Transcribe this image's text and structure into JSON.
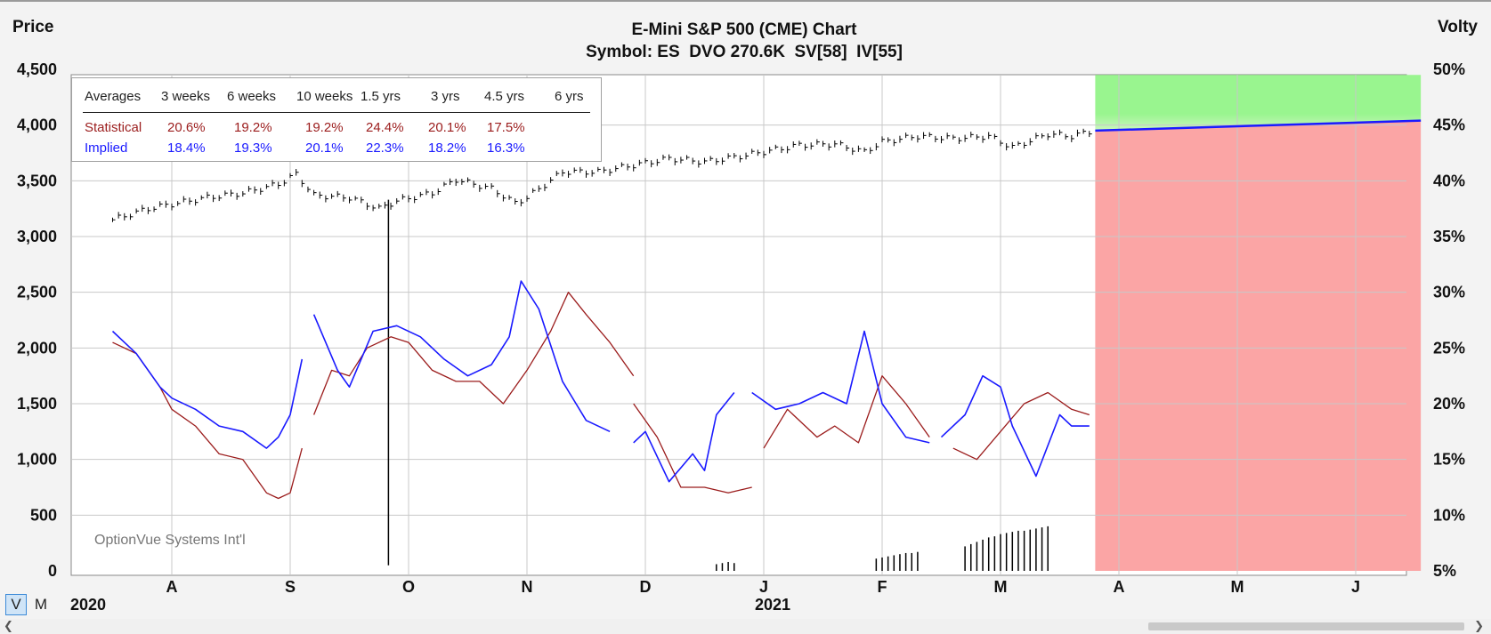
{
  "header": {
    "price_label": "Price",
    "volty_label": "Volty",
    "title": "E-Mini S&P 500 (CME) Chart",
    "subtitle": "Symbol: ES  DVO 270.6K  SV[58]  IV[55]"
  },
  "averages_table": {
    "columns": [
      "Averages",
      "3 weeks",
      "6 weeks",
      "10 weeks",
      "1.5 yrs",
      "3 yrs",
      "4.5 yrs",
      "6 yrs"
    ],
    "statistical": {
      "label": "Statistical",
      "values": [
        "20.6%",
        "19.2%",
        "19.2%",
        "24.4%",
        "20.1%",
        "17.5%",
        ""
      ]
    },
    "implied": {
      "label": "Implied",
      "values": [
        "18.4%",
        "19.3%",
        "20.1%",
        "22.3%",
        "18.2%",
        "16.3%",
        ""
      ]
    }
  },
  "watermark": "OptionVue Systems Int'l",
  "toggles": {
    "v": "V",
    "m": "M"
  },
  "colors": {
    "price_bars": "#000000",
    "statistical": "#9b1c1c",
    "implied": "#1a1aff",
    "projection_up": "#99f58f",
    "projection_down": "#fba5a5",
    "projection_line": "#1a1aff"
  },
  "chart_data": {
    "type": "line",
    "title": "E-Mini S&P 500 (CME) Chart",
    "subtitle": "Symbol: ES  DVO 270.6K  SV[58]  IV[55]",
    "ylabel_left": "Price",
    "ylabel_right": "Volty",
    "price_axis": {
      "range": [
        0,
        4500
      ],
      "ticks": [
        0,
        500,
        1000,
        1500,
        2000,
        2500,
        3000,
        3500,
        4000,
        4500
      ],
      "tick_labels": [
        "0",
        "500",
        "1,000",
        "1,500",
        "2,000",
        "2,500",
        "3,000",
        "3,500",
        "4,000",
        "4,500"
      ]
    },
    "volty_axis": {
      "range": [
        5,
        50
      ],
      "ticks": [
        5,
        10,
        15,
        20,
        25,
        30,
        35,
        40,
        45,
        50
      ],
      "tick_labels": [
        "5%",
        "10%",
        "15%",
        "20%",
        "25%",
        "30%",
        "35%",
        "40%",
        "45%",
        "50%"
      ]
    },
    "x_axis": {
      "unit": "months since July 2020",
      "range": [
        0.5,
        12
      ],
      "ticks": [
        {
          "x": 1,
          "label": "A"
        },
        {
          "x": 2,
          "label": "S"
        },
        {
          "x": 3,
          "label": "O"
        },
        {
          "x": 4,
          "label": "N"
        },
        {
          "x": 5,
          "label": "D"
        },
        {
          "x": 6,
          "label": "J"
        },
        {
          "x": 7,
          "label": "F"
        },
        {
          "x": 8,
          "label": "M"
        },
        {
          "x": 9,
          "label": "A"
        },
        {
          "x": 10,
          "label": "M"
        },
        {
          "x": 11,
          "label": "J"
        }
      ],
      "year_labels": [
        {
          "x": 0.5,
          "label": "2020"
        },
        {
          "x": 6,
          "label": "2021"
        }
      ]
    },
    "grid": true,
    "price_series": {
      "name": "ES price",
      "x": [
        0.5,
        0.8,
        1.0,
        1.3,
        1.6,
        1.9,
        2.05,
        2.2,
        2.5,
        2.75,
        2.9,
        3.2,
        3.4,
        3.7,
        3.9,
        4.0,
        4.3,
        4.6,
        4.9,
        5.2,
        5.5,
        5.8,
        6.0,
        6.3,
        6.6,
        6.85,
        7.0,
        7.3,
        7.6,
        7.9,
        8.1,
        8.4,
        8.6,
        8.75
      ],
      "close": [
        3150,
        3250,
        3290,
        3350,
        3390,
        3470,
        3560,
        3370,
        3350,
        3250,
        3320,
        3390,
        3510,
        3430,
        3300,
        3350,
        3580,
        3580,
        3640,
        3700,
        3670,
        3720,
        3760,
        3820,
        3830,
        3760,
        3850,
        3900,
        3880,
        3900,
        3800,
        3920,
        3900,
        3940
      ]
    },
    "spike_line": {
      "x": 2.83,
      "low": 50,
      "high": 3330
    },
    "series": [
      {
        "name": "Statistical",
        "segments": [
          {
            "x": [
              0.5,
              0.7,
              0.9,
              1.0,
              1.2,
              1.4,
              1.6,
              1.8,
              1.9,
              2.0,
              2.1
            ],
            "y": [
              25.5,
              24.5,
              21.5,
              19.5,
              18.0,
              15.5,
              15.0,
              12.0,
              11.5,
              12.0,
              16.0
            ]
          },
          {
            "x": [
              2.2,
              2.35,
              2.5,
              2.65,
              2.85,
              3.0,
              3.2,
              3.4,
              3.6,
              3.8,
              4.0,
              4.2,
              4.35,
              4.5,
              4.7,
              4.9
            ],
            "y": [
              19.0,
              23.0,
              22.5,
              25.0,
              26.0,
              25.5,
              23.0,
              22.0,
              22.0,
              20.0,
              23.0,
              26.5,
              30.0,
              28.0,
              25.5,
              22.5
            ]
          },
          {
            "x": [
              4.9,
              5.1,
              5.3,
              5.5,
              5.7,
              5.9
            ],
            "y": [
              20.0,
              17.0,
              12.5,
              12.5,
              12.0,
              12.5
            ]
          },
          {
            "x": [
              6.0,
              6.2,
              6.45,
              6.6,
              6.8,
              7.0,
              7.2,
              7.4
            ],
            "y": [
              16.0,
              19.5,
              17.0,
              18.0,
              16.5,
              22.5,
              20.0,
              17.0
            ]
          },
          {
            "x": [
              7.6,
              7.8,
              8.0,
              8.2,
              8.4,
              8.6,
              8.75
            ],
            "y": [
              16.0,
              15.0,
              17.5,
              20.0,
              21.0,
              19.5,
              19.0
            ]
          }
        ]
      },
      {
        "name": "Implied",
        "segments": [
          {
            "x": [
              0.5,
              0.7,
              0.9,
              1.0,
              1.2,
              1.4,
              1.6,
              1.8,
              1.9,
              2.0,
              2.1
            ],
            "y": [
              26.5,
              24.5,
              21.5,
              20.5,
              19.5,
              18.0,
              17.5,
              16.0,
              17.0,
              19.0,
              24.0
            ]
          },
          {
            "x": [
              2.2,
              2.4,
              2.5,
              2.7,
              2.9,
              3.1,
              3.3,
              3.5,
              3.7,
              3.85,
              3.95,
              4.1,
              4.3,
              4.5,
              4.7
            ],
            "y": [
              28.0,
              23.0,
              21.5,
              26.5,
              27.0,
              26.0,
              24.0,
              22.5,
              23.5,
              26.0,
              31.0,
              28.5,
              22.0,
              18.5,
              17.5
            ]
          },
          {
            "x": [
              4.9,
              5.0,
              5.2,
              5.4,
              5.5,
              5.6,
              5.75
            ],
            "y": [
              16.5,
              17.5,
              13.0,
              15.5,
              14.0,
              19.0,
              21.0
            ]
          },
          {
            "x": [
              5.9,
              6.1,
              6.3,
              6.5,
              6.7,
              6.85,
              7.0,
              7.2,
              7.4
            ],
            "y": [
              21.0,
              19.5,
              20.0,
              21.0,
              20.0,
              26.5,
              20.0,
              17.0,
              16.5
            ]
          },
          {
            "x": [
              7.5,
              7.7,
              7.85,
              8.0,
              8.1,
              8.3,
              8.5,
              8.6,
              8.75
            ],
            "y": [
              17.0,
              19.0,
              22.5,
              21.5,
              18.0,
              13.5,
              19.0,
              18.0,
              18.0
            ]
          }
        ]
      }
    ],
    "volume_bars": [
      {
        "x": 5.6,
        "value": 60
      },
      {
        "x": 5.65,
        "value": 70
      },
      {
        "x": 5.7,
        "value": 80
      },
      {
        "x": 5.75,
        "value": 70
      },
      {
        "x": 6.95,
        "value": 110
      },
      {
        "x": 7.0,
        "value": 120
      },
      {
        "x": 7.05,
        "value": 130
      },
      {
        "x": 7.1,
        "value": 140
      },
      {
        "x": 7.15,
        "value": 150
      },
      {
        "x": 7.2,
        "value": 160
      },
      {
        "x": 7.25,
        "value": 160
      },
      {
        "x": 7.3,
        "value": 170
      },
      {
        "x": 7.7,
        "value": 220
      },
      {
        "x": 7.75,
        "value": 240
      },
      {
        "x": 7.8,
        "value": 260
      },
      {
        "x": 7.85,
        "value": 280
      },
      {
        "x": 7.9,
        "value": 300
      },
      {
        "x": 7.95,
        "value": 310
      },
      {
        "x": 8.0,
        "value": 330
      },
      {
        "x": 8.05,
        "value": 340
      },
      {
        "x": 8.1,
        "value": 350
      },
      {
        "x": 8.15,
        "value": 360
      },
      {
        "x": 8.2,
        "value": 360
      },
      {
        "x": 8.25,
        "value": 370
      },
      {
        "x": 8.3,
        "value": 380
      },
      {
        "x": 8.35,
        "value": 390
      },
      {
        "x": 8.4,
        "value": 400
      }
    ],
    "projection": {
      "x_start": 8.8,
      "x_end": 11.55,
      "price_start": 3950,
      "price_end": 4040,
      "upper_price": 4450,
      "lower_price": 0
    }
  }
}
